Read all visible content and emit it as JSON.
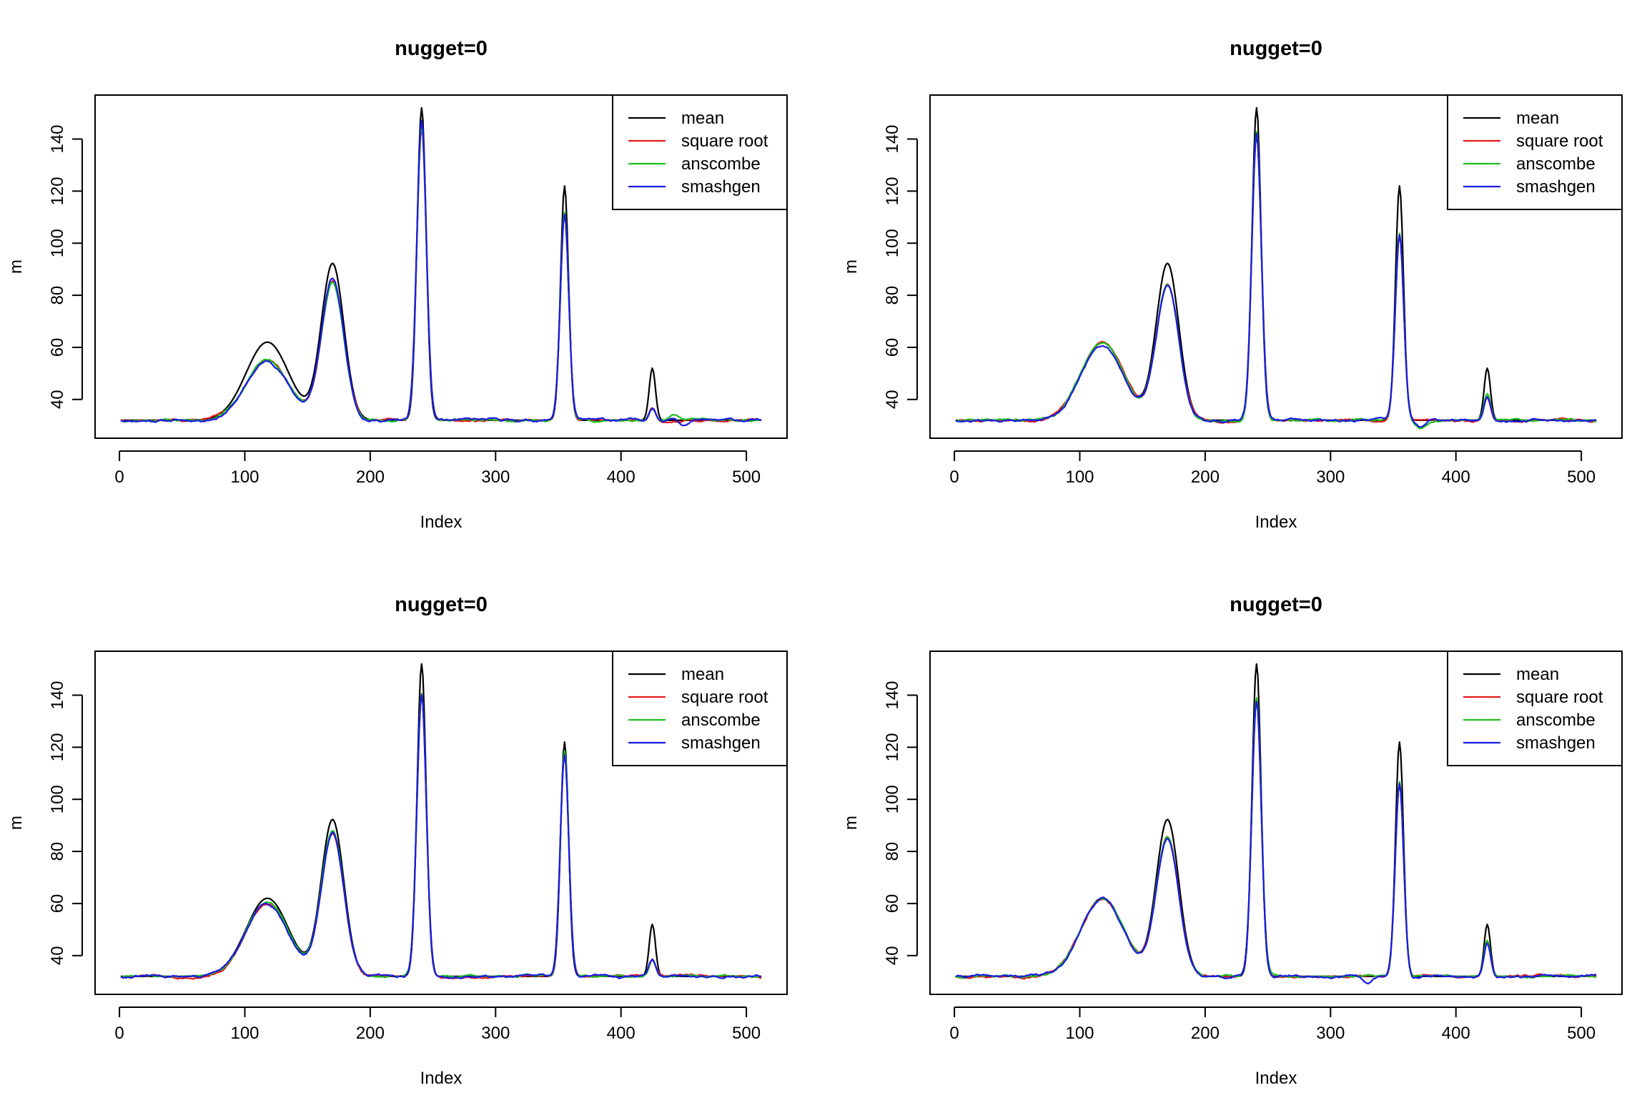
{
  "colors": {
    "mean": "#000000",
    "square root": "#e41a1c",
    "anscombe": "#1fbf1f",
    "smashgen": "#1a1ae6"
  },
  "chart_data": [
    {
      "type": "line",
      "title": "nugget=0",
      "xlabel": "Index",
      "ylabel": "m",
      "xlim": [
        1,
        512
      ],
      "ylim": [
        30,
        152
      ],
      "x_ticks": [
        0,
        100,
        200,
        300,
        400,
        500
      ],
      "y_ticks": [
        40,
        60,
        80,
        100,
        120,
        140
      ],
      "legend": {
        "position": "top-right",
        "entries": [
          "mean",
          "square root",
          "anscombe",
          "smashgen"
        ]
      },
      "series_params": {
        "smashgen": {
          "peaks": [
            [
              118,
              22.5
            ],
            [
              170,
              54
            ],
            [
              241,
              115
            ],
            [
              355,
              79
            ],
            [
              425,
              5
            ],
            [
              443,
              2
            ],
            [
              450,
              -2
            ]
          ],
          "noise": 0.6,
          "seed": 11
        },
        "anscombe": {
          "peaks": [
            [
              118,
              23
            ],
            [
              170,
              53
            ],
            [
              241,
              113
            ],
            [
              355,
              80
            ],
            [
              425,
              5
            ],
            [
              443,
              2
            ]
          ],
          "noise": 0.5,
          "seed": 12
        },
        "square root": {
          "peaks": [
            [
              118,
              23
            ],
            [
              170,
              53
            ],
            [
              241,
              113
            ],
            [
              355,
              79
            ],
            [
              425,
              5
            ]
          ],
          "noise": 0.5,
          "seed": 13
        }
      }
    },
    {
      "type": "line",
      "title": "nugget=0",
      "xlabel": "Index",
      "ylabel": "m",
      "xlim": [
        1,
        512
      ],
      "ylim": [
        30,
        152
      ],
      "x_ticks": [
        0,
        100,
        200,
        300,
        400,
        500
      ],
      "y_ticks": [
        40,
        60,
        80,
        100,
        120,
        140
      ],
      "legend": {
        "position": "top-right",
        "entries": [
          "mean",
          "square root",
          "anscombe",
          "smashgen"
        ]
      },
      "series_params": {
        "smashgen": {
          "peaks": [
            [
              118,
              29
            ],
            [
              170,
              52
            ],
            [
              241,
              110
            ],
            [
              355,
              71
            ],
            [
              425,
              9
            ],
            [
              372,
              -3
            ]
          ],
          "noise": 0.6,
          "seed": 21
        },
        "anscombe": {
          "peaks": [
            [
              118,
              30
            ],
            [
              170,
              52
            ],
            [
              241,
              111
            ],
            [
              355,
              72
            ],
            [
              425,
              10
            ],
            [
              372,
              -3
            ]
          ],
          "noise": 0.5,
          "seed": 22
        },
        "square root": {
          "peaks": [
            [
              118,
              30
            ],
            [
              170,
              52
            ],
            [
              241,
              110
            ],
            [
              355,
              71
            ],
            [
              425,
              9
            ]
          ],
          "noise": 0.5,
          "seed": 23
        }
      }
    },
    {
      "type": "line",
      "title": "nugget=0",
      "xlabel": "Index",
      "ylabel": "m",
      "xlim": [
        1,
        512
      ],
      "ylim": [
        30,
        152
      ],
      "x_ticks": [
        0,
        100,
        200,
        300,
        400,
        500
      ],
      "y_ticks": [
        40,
        60,
        80,
        100,
        120,
        140
      ],
      "legend": {
        "position": "top-right",
        "entries": [
          "mean",
          "square root",
          "anscombe",
          "smashgen"
        ]
      },
      "series_params": {
        "smashgen": {
          "peaks": [
            [
              118,
              28
            ],
            [
              170,
              55
            ],
            [
              241,
              108
            ],
            [
              355,
              85
            ],
            [
              425,
              6
            ]
          ],
          "noise": 0.6,
          "seed": 31
        },
        "anscombe": {
          "peaks": [
            [
              118,
              29
            ],
            [
              170,
              56
            ],
            [
              241,
              109
            ],
            [
              355,
              87
            ],
            [
              425,
              6
            ]
          ],
          "noise": 0.5,
          "seed": 32
        },
        "square root": {
          "peaks": [
            [
              118,
              28
            ],
            [
              170,
              55
            ],
            [
              241,
              108
            ],
            [
              355,
              86
            ],
            [
              425,
              6
            ]
          ],
          "noise": 0.5,
          "seed": 33
        }
      }
    },
    {
      "type": "line",
      "title": "nugget=0",
      "xlabel": "Index",
      "ylabel": "m",
      "xlim": [
        1,
        512
      ],
      "ylim": [
        30,
        152
      ],
      "x_ticks": [
        0,
        100,
        200,
        300,
        400,
        500
      ],
      "y_ticks": [
        40,
        60,
        80,
        100,
        120,
        140
      ],
      "legend": {
        "position": "top-right",
        "entries": [
          "mean",
          "square root",
          "anscombe",
          "smashgen"
        ]
      },
      "series_params": {
        "smashgen": {
          "peaks": [
            [
              118,
              30
            ],
            [
              170,
              53
            ],
            [
              241,
              106
            ],
            [
              355,
              74
            ],
            [
              425,
              13
            ],
            [
              330,
              -3
            ]
          ],
          "noise": 0.6,
          "seed": 41
        },
        "anscombe": {
          "peaks": [
            [
              118,
              30
            ],
            [
              170,
              53
            ],
            [
              241,
              107
            ],
            [
              355,
              75
            ],
            [
              425,
              14
            ]
          ],
          "noise": 0.5,
          "seed": 42
        },
        "square root": {
          "peaks": [
            [
              118,
              30
            ],
            [
              170,
              53
            ],
            [
              241,
              106
            ],
            [
              355,
              74
            ],
            [
              425,
              13
            ]
          ],
          "noise": 0.5,
          "seed": 43
        }
      }
    }
  ]
}
